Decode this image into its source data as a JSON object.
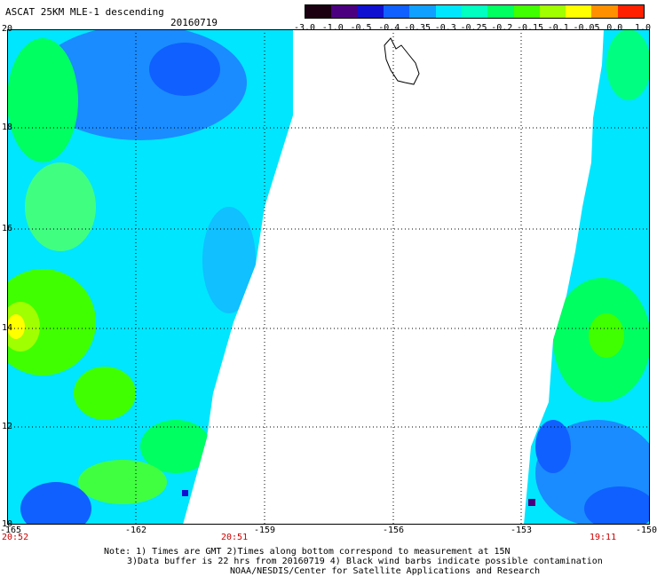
{
  "header": {
    "title": "ASCAT 25KM MLE-1 descending",
    "date": "20160719"
  },
  "colorbar": {
    "labels": [
      "-3.0",
      "-1.0",
      "-0.5",
      "-0.4",
      "-0.35",
      "-0.3",
      "-0.25",
      "-0.2",
      "-0.15",
      "-0.1",
      "-0.05",
      "0.0",
      "1.0"
    ],
    "colors": [
      "#1a0010",
      "#4b0080",
      "#1010d0",
      "#1060ff",
      "#10a0ff",
      "#00e6ff",
      "#00ffc0",
      "#00ff60",
      "#40ff00",
      "#a0ff00",
      "#ffff00",
      "#ff9000",
      "#ff2000"
    ]
  },
  "map": {
    "lat_labels": [
      "20",
      "18",
      "16",
      "14",
      "12",
      "10"
    ],
    "lon_labels": [
      "-165",
      "-162",
      "-159",
      "-156",
      "-153",
      "-150"
    ],
    "left_swath_time_bottom": "20:52",
    "left_swath_time_edge": "20:51",
    "right_swath_time": "19:11"
  },
  "notes": {
    "line1": "Note: 1) Times are GMT 2)Times along bottom correspond to measurement at 15N",
    "line2": "3)Data buffer is 22 hrs from 20160719 4) Black wind barbs indicate possible contamination",
    "line3": "NOAA/NESDIS/Center for Satellite Applications and Research"
  }
}
